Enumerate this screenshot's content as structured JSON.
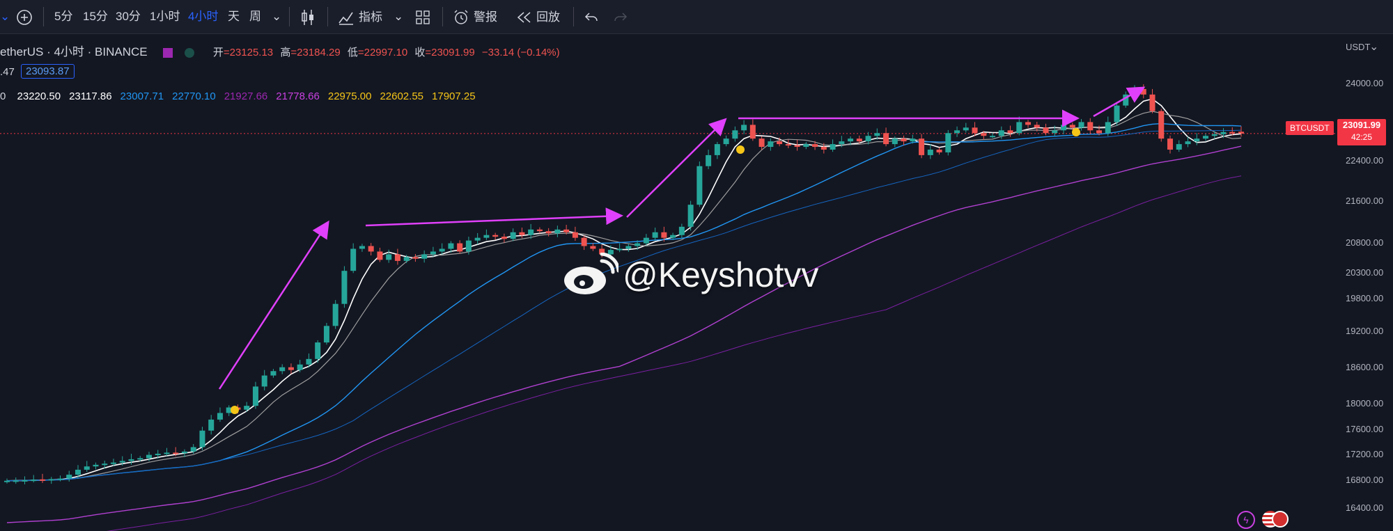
{
  "toolbar": {
    "intervals": [
      {
        "label": "5分",
        "active": false
      },
      {
        "label": "15分",
        "active": false
      },
      {
        "label": "30分",
        "active": false
      },
      {
        "label": "1小时",
        "active": false
      },
      {
        "label": "4小时",
        "active": true
      },
      {
        "label": "天",
        "active": false
      },
      {
        "label": "周",
        "active": false
      }
    ],
    "indicators_label": "指标",
    "alert_label": "警报",
    "replay_label": "回放"
  },
  "symbol": {
    "title": "etherUS · 4小时 · BINANCE",
    "open_label": "开",
    "open": "=23125.13",
    "high_label": "高",
    "high": "=23184.29",
    "low_label": "低",
    "low": "=22997.10",
    "close_label": "收",
    "close": "=23091.99",
    "change": "−33.14 (−0.14%)",
    "row2_prefix": ".47",
    "row2_box": "23093.87",
    "row3_prefix": "0"
  },
  "ma_values": [
    {
      "value": "23220.50",
      "color": "#ffffff"
    },
    {
      "value": "23117.86",
      "color": "#ffffff"
    },
    {
      "value": "23007.71",
      "color": "#2196f3"
    },
    {
      "value": "22770.10",
      "color": "#2196f3"
    },
    {
      "value": "21927.66",
      "color": "#9c27b0"
    },
    {
      "value": "21778.66",
      "color": "#c940e0"
    },
    {
      "value": "22975.00",
      "color": "#f5c518"
    },
    {
      "value": "22602.55",
      "color": "#f5c518"
    },
    {
      "value": "17907.25",
      "color": "#f5c518"
    }
  ],
  "price_axis": {
    "currency": "USDT",
    "ticks": [
      "24000.00",
      "23200.00",
      "22400.00",
      "21600.00",
      "20800.00",
      "20300.00",
      "19800.00",
      "19200.00",
      "18600.00",
      "18000.00",
      "17600.00",
      "17200.00",
      "16800.00",
      "16400.00"
    ]
  },
  "last_price": {
    "ticker": "BTCUSDT",
    "price": "23091.99",
    "countdown": "42:25"
  },
  "watermark": "@Keyshotvv",
  "colors": {
    "up": "#26a69a",
    "down": "#ef5350",
    "bg": "#131722",
    "arrow": "#e040fb",
    "marker": "#f5c518"
  },
  "chart_data": {
    "type": "line",
    "y_range": [
      16200,
      24600
    ],
    "candles_close": [
      16790,
      16795,
      16800,
      16810,
      16805,
      16820,
      16830,
      16900,
      16990,
      17050,
      17080,
      17100,
      17120,
      17150,
      17180,
      17200,
      17260,
      17280,
      17300,
      17290,
      17320,
      17400,
      17700,
      17900,
      18020,
      18120,
      18080,
      18150,
      18500,
      18700,
      18780,
      18850,
      18800,
      18900,
      19000,
      19300,
      19600,
      20000,
      20600,
      21000,
      21050,
      20950,
      20800,
      20900,
      20780,
      20850,
      20820,
      20900,
      20950,
      21000,
      21100,
      20950,
      21150,
      21200,
      21250,
      21220,
      21180,
      21300,
      21250,
      21350,
      21320,
      21280,
      21350,
      21300,
      21200,
      21050,
      21000,
      20900,
      20980,
      21000,
      21050,
      21100,
      21200,
      21300,
      21200,
      21250,
      21400,
      21800,
      22500,
      22700,
      22900,
      23000,
      23150,
      23250,
      23000,
      22850,
      22950,
      22900,
      22880,
      22850,
      22900,
      22850,
      22800,
      22900,
      22950,
      23000,
      22950,
      23050,
      23100,
      22900,
      23000,
      22950,
      23000,
      22700,
      22800,
      22750,
      23100,
      23150,
      23200,
      23100,
      23050,
      23050,
      23150,
      23100,
      23300,
      23250,
      23200,
      23100,
      23150,
      23250,
      23200,
      23300,
      23150,
      23100,
      23300,
      23600,
      23800,
      23900,
      23800,
      23500,
      23000,
      22800,
      22900,
      22950,
      23000,
      23050,
      23080,
      23120,
      23100,
      23091
    ],
    "candles_open": [
      16780,
      16790,
      16795,
      16800,
      16815,
      16805,
      16820,
      16830,
      16900,
      16990,
      17050,
      17080,
      17100,
      17120,
      17150,
      17180,
      17200,
      17260,
      17280,
      17300,
      17290,
      17320,
      17400,
      17700,
      17900,
      18020,
      18120,
      18080,
      18150,
      18500,
      18700,
      18780,
      18850,
      18800,
      18900,
      19000,
      19300,
      19600,
      20000,
      20600,
      21000,
      21050,
      20950,
      20800,
      20900,
      20780,
      20850,
      20820,
      20900,
      20950,
      21000,
      21100,
      20950,
      21150,
      21200,
      21250,
      21220,
      21180,
      21300,
      21250,
      21350,
      21320,
      21280,
      21350,
      21300,
      21200,
      21050,
      21000,
      20900,
      20980,
      21000,
      21050,
      21100,
      21200,
      21300,
      21200,
      21250,
      21400,
      21800,
      22500,
      22700,
      22900,
      23000,
      23150,
      23250,
      23000,
      22850,
      22950,
      22900,
      22880,
      22850,
      22900,
      22850,
      22800,
      22900,
      22950,
      23000,
      22950,
      23050,
      23100,
      22900,
      23000,
      22950,
      23000,
      22700,
      22800,
      22750,
      23100,
      23150,
      23200,
      23100,
      23050,
      23050,
      23150,
      23100,
      23300,
      23250,
      23200,
      23100,
      23150,
      23250,
      23200,
      23300,
      23150,
      23100,
      23300,
      23600,
      23800,
      23900,
      23800,
      23500,
      23000,
      22800,
      22900,
      22950,
      23000,
      23050,
      23080,
      23120,
      23125
    ]
  }
}
